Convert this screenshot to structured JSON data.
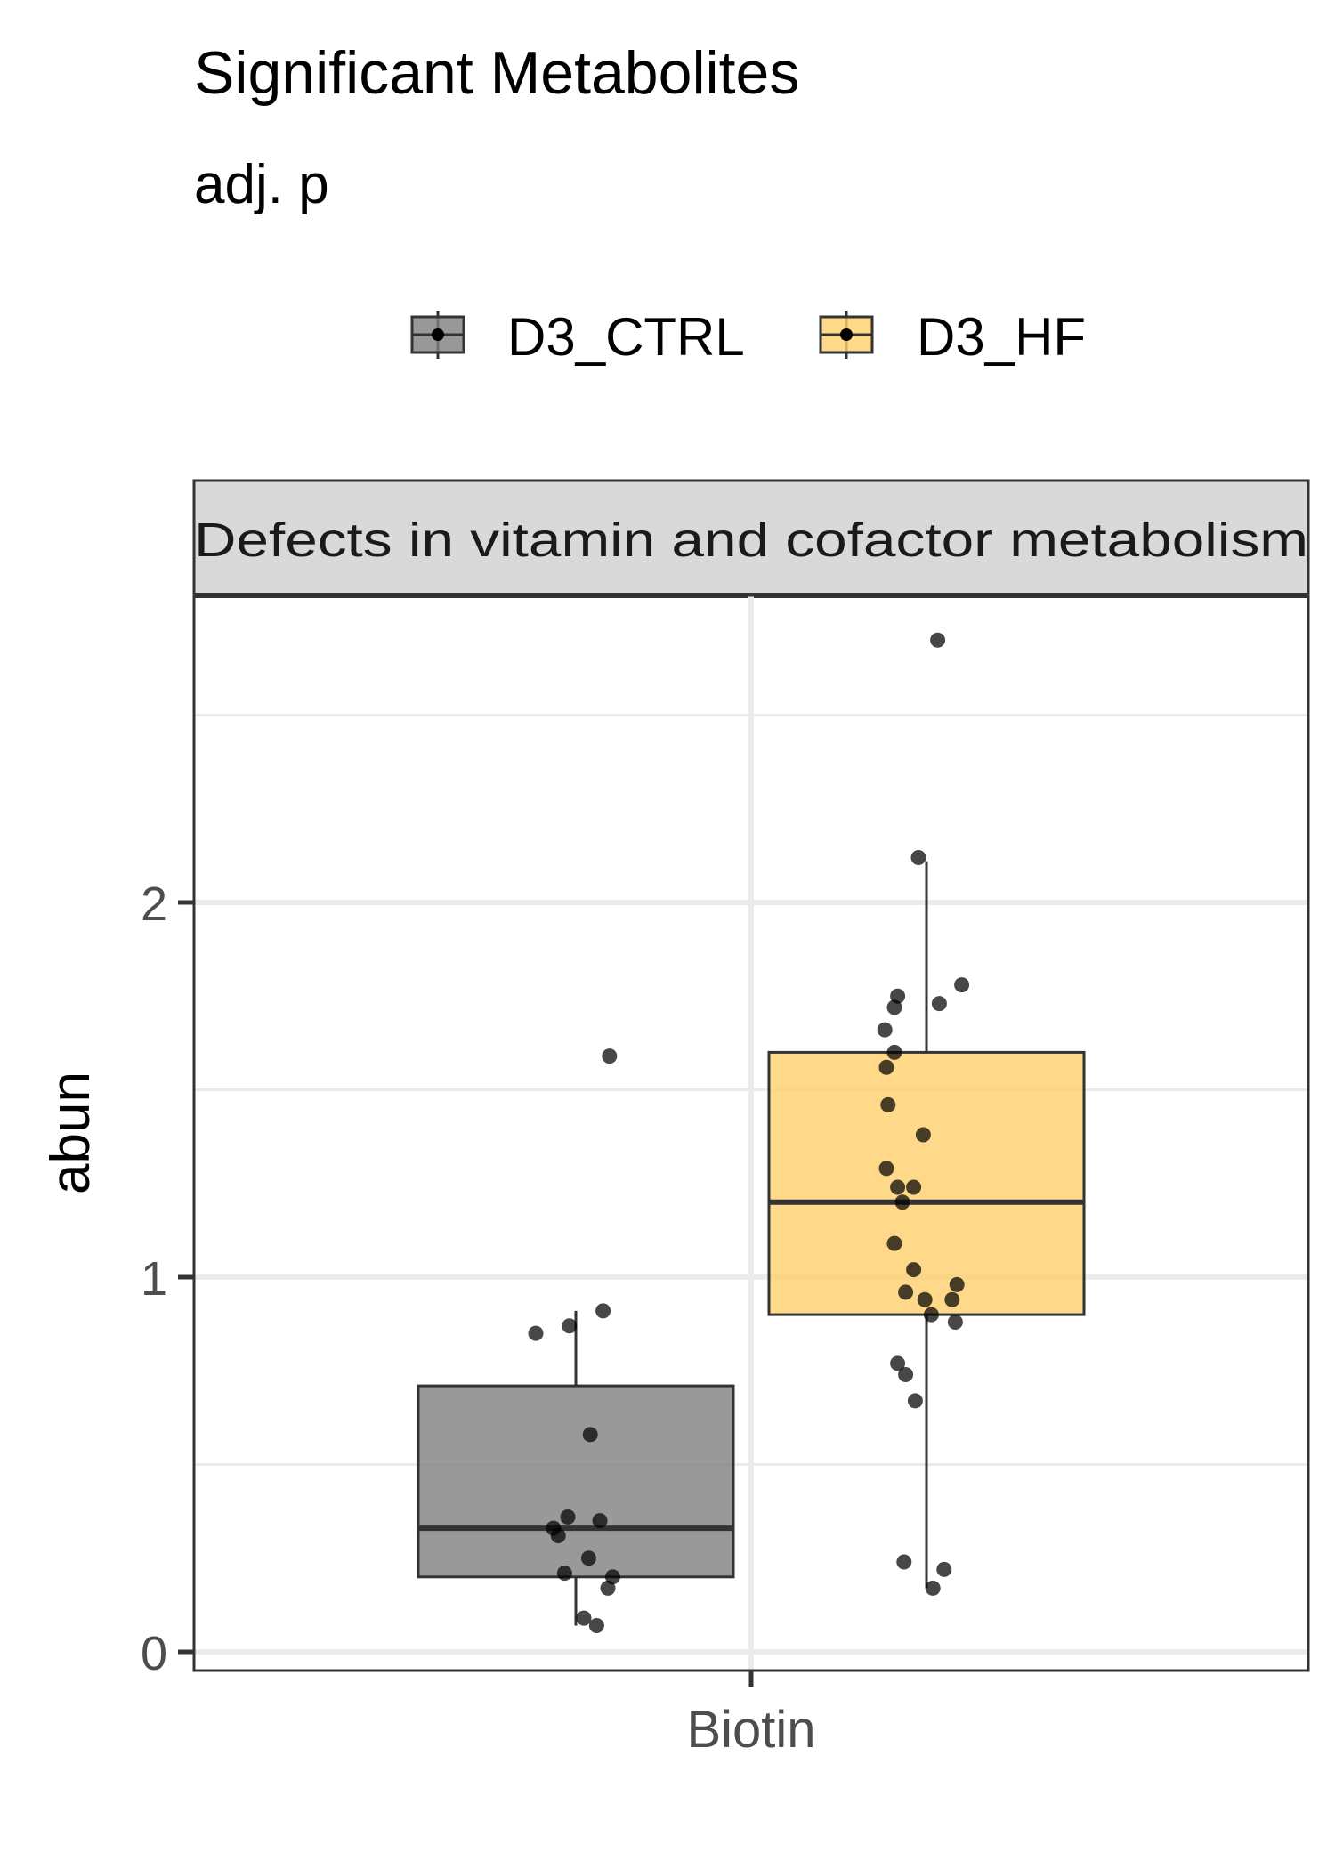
{
  "chart_data": {
    "type": "boxplot",
    "title": "Significant Metabolites",
    "subtitle": "adj. p",
    "facet_label": "Defects in vitamin and cofactor metabolism",
    "xlabel": "",
    "ylabel": "abun",
    "categories": [
      "Biotin"
    ],
    "yticks": [
      0,
      1,
      2
    ],
    "ytick_labels": [
      "0",
      "1",
      "2"
    ],
    "ylim": [
      -0.05,
      2.83
    ],
    "grid": true,
    "legend_position": "top",
    "series": [
      {
        "name": "D3_CTRL",
        "color": "#7f7f7f",
        "box": {
          "q1": 0.2,
          "median": 0.33,
          "q3": 0.71,
          "whisker_low": 0.07,
          "whisker_high": 0.91
        },
        "points": [
          0.85,
          0.87,
          0.91,
          0.58,
          0.36,
          0.35,
          0.33,
          0.31,
          0.25,
          0.21,
          0.2,
          0.17,
          0.09,
          0.07,
          1.59
        ],
        "jitter": [
          -0.25,
          -0.04,
          0.17,
          0.09,
          -0.05,
          0.15,
          -0.14,
          -0.11,
          0.08,
          -0.07,
          0.23,
          0.2,
          0.05,
          0.13,
          0.21
        ]
      },
      {
        "name": "D3_HF",
        "color": "#fdd06b",
        "box": {
          "q1": 0.9,
          "median": 1.2,
          "q3": 1.6,
          "whisker_low": 0.17,
          "whisker_high": 2.11
        },
        "points": [
          2.7,
          2.12,
          1.78,
          1.75,
          1.73,
          1.72,
          1.66,
          1.6,
          1.56,
          1.46,
          1.38,
          1.29,
          1.24,
          1.24,
          1.2,
          1.09,
          1.02,
          0.98,
          0.96,
          0.94,
          0.94,
          0.9,
          0.88,
          0.77,
          0.74,
          0.67,
          0.24,
          0.22,
          0.17
        ],
        "jitter": [
          0.07,
          -0.05,
          0.22,
          -0.18,
          0.08,
          -0.2,
          -0.26,
          -0.2,
          -0.25,
          -0.24,
          -0.02,
          -0.25,
          -0.08,
          -0.18,
          -0.15,
          -0.2,
          -0.08,
          0.19,
          -0.13,
          0.16,
          -0.01,
          0.03,
          0.18,
          -0.18,
          -0.13,
          -0.07,
          -0.14,
          0.11,
          0.04
        ]
      }
    ]
  }
}
